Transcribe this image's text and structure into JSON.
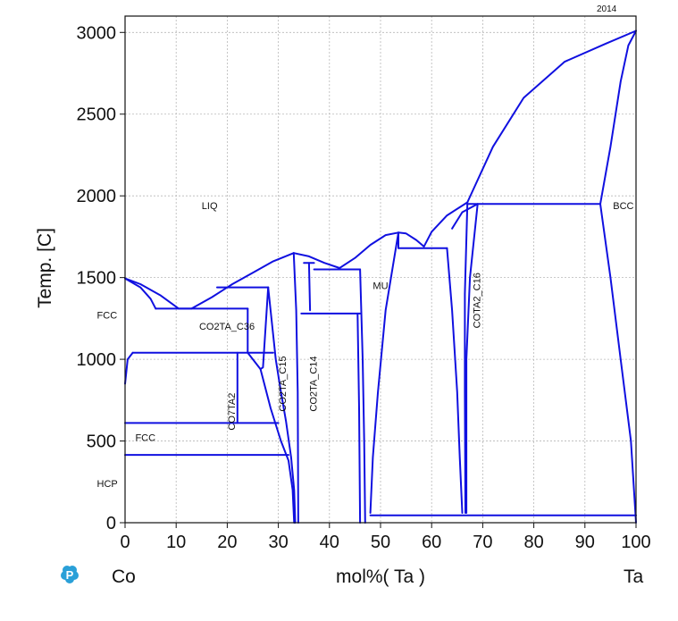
{
  "corner_label": "2014",
  "chart_data": {
    "type": "line",
    "xlim": [
      0,
      100
    ],
    "ylim": [
      0,
      3100
    ],
    "x_ticks": [
      0,
      10,
      20,
      30,
      40,
      50,
      60,
      70,
      80,
      90,
      100
    ],
    "y_ticks": [
      0,
      500,
      1000,
      1500,
      2000,
      2500,
      3000
    ],
    "grid": true,
    "ylabel": "Temp.  [C]",
    "xlabel": "mol%(  Ta  )",
    "left_element": "Co",
    "right_element": "Ta",
    "line_color": "#1010e0",
    "phase_labels": [
      {
        "text": "LIQ",
        "x": 15,
        "y": 1920
      },
      {
        "text": "FCC",
        "x": -5.5,
        "y": 1250
      },
      {
        "text": "FCC",
        "x": 2,
        "y": 500
      },
      {
        "text": "HCP",
        "x": -5.5,
        "y": 220
      },
      {
        "text": "CO2TA_C36",
        "x": 14.5,
        "y": 1180
      },
      {
        "text": "CO2TA_C15",
        "x": 31.5,
        "y": 850,
        "rotated": true
      },
      {
        "text": "CO7TA2",
        "x": 21.5,
        "y": 680,
        "rotated": true
      },
      {
        "text": "CO2TA_C14",
        "x": 37.5,
        "y": 850,
        "rotated": true
      },
      {
        "text": "MU",
        "x": 48.5,
        "y": 1430
      },
      {
        "text": "COTA2_C16",
        "x": 69.5,
        "y": 1360,
        "rotated": true
      },
      {
        "text": "BCC",
        "x": 95.5,
        "y": 1920
      }
    ],
    "lines": [
      {
        "points": [
          [
            0,
            1495
          ],
          [
            3,
            1460
          ],
          [
            7,
            1390
          ],
          [
            10.5,
            1310
          ],
          [
            13,
            1310
          ]
        ]
      },
      {
        "points": [
          [
            0,
            1495
          ],
          [
            3,
            1440
          ],
          [
            5,
            1370
          ],
          [
            6,
            1310
          ]
        ]
      },
      {
        "points": [
          [
            13,
            1310
          ],
          [
            17,
            1380
          ],
          [
            21,
            1460
          ],
          [
            25,
            1530
          ],
          [
            29,
            1600
          ],
          [
            33,
            1650
          ]
        ]
      },
      {
        "points": [
          [
            33,
            1650
          ],
          [
            36,
            1630
          ],
          [
            39,
            1590
          ],
          [
            42,
            1558
          ]
        ]
      },
      {
        "points": [
          [
            42,
            1558
          ],
          [
            45,
            1620
          ],
          [
            48,
            1700
          ],
          [
            51,
            1760
          ],
          [
            53.5,
            1775
          ]
        ]
      },
      {
        "points": [
          [
            53.5,
            1775
          ],
          [
            55,
            1770
          ],
          [
            57,
            1730
          ],
          [
            58.5,
            1690
          ]
        ]
      },
      {
        "points": [
          [
            58.5,
            1690
          ],
          [
            60,
            1780
          ],
          [
            63,
            1880
          ],
          [
            67,
            1960
          ]
        ]
      },
      {
        "points": [
          [
            67,
            1960
          ],
          [
            72,
            2300
          ],
          [
            78,
            2600
          ],
          [
            86,
            2820
          ],
          [
            94,
            2930
          ],
          [
            100,
            3010
          ]
        ]
      },
      {
        "points": [
          [
            93,
            1950
          ],
          [
            95,
            2300
          ],
          [
            97,
            2700
          ],
          [
            98.5,
            2920
          ],
          [
            100,
            3010
          ]
        ]
      },
      {
        "points": [
          [
            6,
            1310
          ],
          [
            24,
            1310
          ]
        ]
      },
      {
        "points": [
          [
            18,
            1440
          ],
          [
            28,
            1440
          ]
        ]
      },
      {
        "points": [
          [
            1.5,
            1040
          ],
          [
            29,
            1040
          ]
        ]
      },
      {
        "points": [
          [
            22,
            1040
          ],
          [
            22,
            610
          ]
        ]
      },
      {
        "points": [
          [
            0,
            610
          ],
          [
            30,
            610
          ]
        ]
      },
      {
        "points": [
          [
            0,
            415
          ],
          [
            32,
            415
          ]
        ]
      },
      {
        "points": [
          [
            24,
            1310
          ],
          [
            24,
            1040
          ]
        ]
      },
      {
        "points": [
          [
            24,
            1040
          ],
          [
            26.5,
            940
          ],
          [
            27,
            950
          ],
          [
            28,
            1440
          ]
        ]
      },
      {
        "points": [
          [
            28,
            1440
          ],
          [
            29.5,
            1000
          ],
          [
            30.5,
            800
          ],
          [
            31.5,
            620
          ],
          [
            32.5,
            400
          ],
          [
            33.1,
            200
          ],
          [
            33.3,
            0
          ]
        ]
      },
      {
        "points": [
          [
            26.5,
            940
          ],
          [
            28.5,
            700
          ],
          [
            30.5,
            500
          ],
          [
            32,
            380
          ],
          [
            32.8,
            200
          ],
          [
            33.1,
            0
          ]
        ]
      },
      {
        "points": [
          [
            33,
            1650
          ],
          [
            33.5,
            1300
          ],
          [
            33.8,
            800
          ],
          [
            33.9,
            0
          ]
        ]
      },
      {
        "points": [
          [
            35,
            1590
          ],
          [
            37,
            1590
          ]
        ]
      },
      {
        "points": [
          [
            36,
            1590
          ],
          [
            36.2,
            1300
          ]
        ]
      },
      {
        "points": [
          [
            37,
            1550
          ],
          [
            46,
            1550
          ]
        ]
      },
      {
        "points": [
          [
            34.5,
            1280
          ],
          [
            46,
            1280
          ]
        ]
      },
      {
        "points": [
          [
            46,
            1550
          ],
          [
            46.5,
            1000
          ],
          [
            46.8,
            500
          ],
          [
            47,
            0
          ]
        ]
      },
      {
        "points": [
          [
            45.5,
            1280
          ],
          [
            45.8,
            700
          ],
          [
            46,
            0
          ]
        ]
      },
      {
        "points": [
          [
            53.5,
            1775
          ],
          [
            51,
            1300
          ],
          [
            49.5,
            800
          ],
          [
            48.5,
            400
          ],
          [
            48,
            60
          ]
        ]
      },
      {
        "points": [
          [
            53.5,
            1775
          ],
          [
            53.5,
            1680
          ]
        ]
      },
      {
        "points": [
          [
            53.5,
            1680
          ],
          [
            63,
            1680
          ]
        ]
      },
      {
        "points": [
          [
            63,
            1680
          ],
          [
            64,
            1300
          ],
          [
            65,
            800
          ],
          [
            65.5,
            400
          ],
          [
            66,
            60
          ]
        ]
      },
      {
        "points": [
          [
            67,
            1950
          ],
          [
            93,
            1950
          ]
        ]
      },
      {
        "points": [
          [
            67,
            1950
          ],
          [
            66.5,
            1400
          ],
          [
            66.5,
            800
          ],
          [
            66.6,
            60
          ]
        ]
      },
      {
        "points": [
          [
            64,
            1800
          ],
          [
            66,
            1900
          ],
          [
            69,
            1950
          ]
        ]
      },
      {
        "points": [
          [
            69,
            1950
          ],
          [
            67.5,
            1500
          ],
          [
            66.8,
            1000
          ],
          [
            66.8,
            60
          ]
        ]
      },
      {
        "points": [
          [
            48,
            45
          ],
          [
            100,
            45
          ]
        ]
      },
      {
        "points": [
          [
            93,
            1950
          ],
          [
            95,
            1500
          ],
          [
            97,
            1000
          ],
          [
            99,
            500
          ],
          [
            100,
            0
          ]
        ]
      },
      {
        "points": [
          [
            0,
            850
          ],
          [
            0.5,
            1000
          ],
          [
            1.5,
            1040
          ]
        ]
      }
    ]
  }
}
